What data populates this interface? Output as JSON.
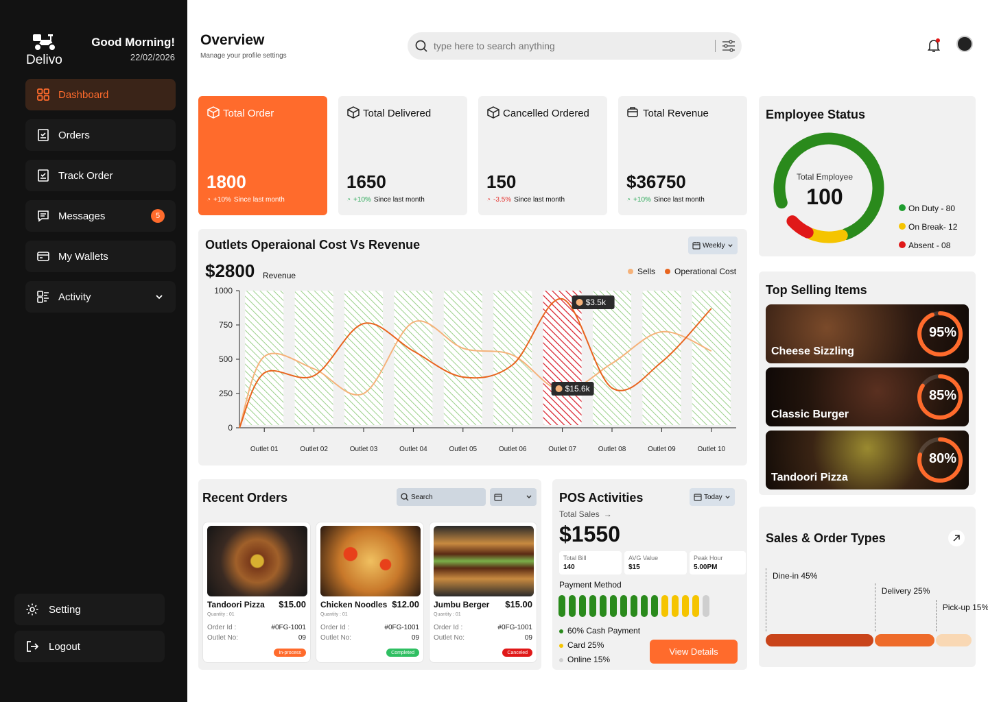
{
  "sidebar": {
    "brand": "Delivo",
    "greeting": "Good Morning!",
    "date": "22/02/2026",
    "nav": [
      {
        "label": "Dashboard",
        "icon": "grid-icon",
        "active": true
      },
      {
        "label": "Orders",
        "icon": "receipt-icon"
      },
      {
        "label": "Track Order",
        "icon": "receipt-icon"
      },
      {
        "label": "Messages",
        "icon": "chat-icon",
        "badge": "5"
      },
      {
        "label": "My Wallets",
        "icon": "wallet-icon"
      },
      {
        "label": "Activity",
        "icon": "activity-icon"
      }
    ],
    "setting": "Setting",
    "logout": "Logout"
  },
  "header": {
    "title": "Overview",
    "subtitle": "Manage your profile settings",
    "search_placeholder": "type here to search anything"
  },
  "stats": [
    {
      "label": "Total Order",
      "value": "1800",
      "change": "+10%",
      "note": "Since last month"
    },
    {
      "label": "Total Delivered",
      "value": "1650",
      "change": "+10%",
      "note": "Since last month"
    },
    {
      "label": "Cancelled Ordered",
      "value": "150",
      "change": "-3.5%",
      "note": "Since last month"
    },
    {
      "label": "Total Revenue",
      "value": "$36750",
      "change": "+10%",
      "note": "Since last month"
    }
  ],
  "chart": {
    "title": "Outlets Operaional Cost Vs Revenue",
    "value": "$2800",
    "value_label": "Revenue",
    "period": "Weekly",
    "legend": [
      "Sells",
      "Operational Cost"
    ],
    "tooltip_top": "$3.5k",
    "tooltip_mid": "$15.6k"
  },
  "chart_data": {
    "type": "line",
    "categories": [
      "Outlet 01",
      "Outlet 02",
      "Outlet 03",
      "Outlet 04",
      "Outlet 05",
      "Outlet 06",
      "Outlet 07",
      "Outlet 08",
      "Outlet 09",
      "Outlet 10"
    ],
    "yticks": [
      "0",
      "250",
      "500",
      "750",
      "1000"
    ],
    "ylim": [
      0,
      1000
    ],
    "highlight": "Outlet 07",
    "series": [
      {
        "name": "Sells",
        "values": [
          520,
          430,
          250,
          770,
          580,
          530,
          270,
          470,
          700,
          560
        ]
      },
      {
        "name": "Operational Cost",
        "values": [
          400,
          380,
          760,
          560,
          370,
          460,
          940,
          290,
          480,
          870
        ]
      }
    ],
    "colors": {
      "Sells": "#f5b27a",
      "Operational Cost": "#e8641e"
    }
  },
  "employee": {
    "title": "Employee Status",
    "center_label": "Total Employee",
    "total": "100",
    "legend": [
      {
        "label": "On Duty - 80",
        "color": "#1f9d2f",
        "value": 80
      },
      {
        "label": "On Break- 12",
        "color": "#f5c400",
        "value": 12
      },
      {
        "label": "Absent - 08",
        "color": "#e01818",
        "value": 8
      }
    ]
  },
  "top_selling": {
    "title": "Top Selling Items",
    "items": [
      {
        "name": "Cheese Sizzling",
        "pct": "95%",
        "value": 95
      },
      {
        "name": "Classic Burger",
        "pct": "85%",
        "value": 85
      },
      {
        "name": "Tandoori Pizza",
        "pct": "80%",
        "value": 80
      }
    ]
  },
  "sales_types": {
    "title": "Sales & Order Types",
    "items": [
      {
        "label": "Dine-in 45%",
        "value": 45,
        "color": "#c9441a"
      },
      {
        "label": "Delivery 25%",
        "value": 25,
        "color": "#ee6b2a"
      },
      {
        "label": "Pick-up 15%",
        "value": 15,
        "color": "#f9d8b4"
      }
    ]
  },
  "recent": {
    "title": "Recent Orders",
    "search": "Search",
    "orders": [
      {
        "name": "Tandoori Pizza",
        "price": "$15.00",
        "qty": "Quantity : 01",
        "id_label": "Order Id :",
        "id": "#0FG-1001",
        "outlet_label": "Outlet No:",
        "outlet": "09",
        "status": "In-process",
        "status_color": "#ff6b2c"
      },
      {
        "name": "Chicken Noodles",
        "price": "$12.00",
        "qty": "Quantity : 01",
        "id_label": "Order Id :",
        "id": "#0FG-1001",
        "outlet_label": "Outlet No:",
        "outlet": "09",
        "status": "Completed",
        "status_color": "#2fbf62"
      },
      {
        "name": "Jumbu Berger",
        "price": "$15.00",
        "qty": "Quantity : 01",
        "id_label": "Order Id :",
        "id": "#0FG-1001",
        "outlet_label": "Outlet No:",
        "outlet": "09",
        "status": "Canceled",
        "status_color": "#e01818"
      }
    ]
  },
  "pos": {
    "title": "POS Activities",
    "period": "Today",
    "total_label": "Total Sales",
    "total": "$1550",
    "minis": [
      {
        "label": "Total Bill",
        "value": "140"
      },
      {
        "label": "AVG Value",
        "value": "$15"
      },
      {
        "label": "Peak Hour",
        "value": "5.00PM"
      }
    ],
    "payment_title": "Payment Method",
    "methods": [
      {
        "label": "60% Cash Payment",
        "color": "#2a8a1c"
      },
      {
        "label": "Card 25%",
        "color": "#f5c400"
      },
      {
        "label": "Online 15%",
        "color": "#cfcfcf"
      }
    ],
    "button": "View Details"
  }
}
